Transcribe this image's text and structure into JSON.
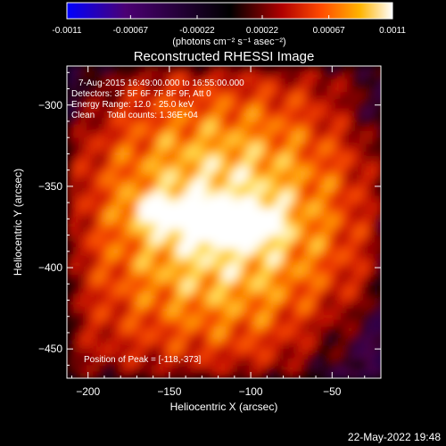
{
  "chart_data": {
    "type": "heatmap",
    "title": "Reconstructed RHESSI Image",
    "xlabel": "Heliocentric X (arcsec)",
    "ylabel": "Heliocentric Y (arcsec)",
    "xlim": [
      -213,
      -20
    ],
    "ylim": [
      -468,
      -276
    ],
    "x_ticks": [
      -200,
      -150,
      -100,
      -50
    ],
    "y_ticks": [
      -300,
      -350,
      -400,
      -450
    ],
    "colorbar": {
      "range": [
        -0.0011,
        0.0011
      ],
      "tick_values": [
        -0.0011,
        -0.00067,
        -0.00022,
        0.00022,
        0.00067,
        0.0011
      ],
      "tick_labels": [
        "-0.0011",
        "-0.00067",
        "-0.00022",
        "0.00022",
        "0.00067",
        "0.0011"
      ],
      "units_label": "(photons cm⁻² s⁻¹ asec⁻²)",
      "colormap": [
        "#0000ff",
        "#4b0073",
        "#000000",
        "#b00000",
        "#ff4a00",
        "#ffb400",
        "#ffffff"
      ]
    },
    "annotations": [
      "7-Aug-2015 16:49:00.000 to 16:55:00.000",
      "Detectors: 3F 5F 6F 7F 8F 9F, Att 0",
      "Energy Range: 12.0 - 25.0 keV",
      "Clean     Total counts: 1.36E+04"
    ],
    "peak_label": "Position of Peak = [-118,-373]",
    "peak": {
      "x": -118,
      "y": -373
    },
    "timestamp": "22-May-2022 19:48"
  }
}
